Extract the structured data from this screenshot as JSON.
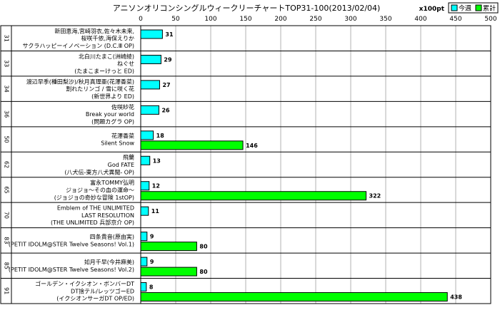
{
  "chart_data": {
    "type": "bar",
    "orientation": "horizontal",
    "title": "アニソンオリコンシングルウィークリーチャートTOP31-100(2013/02/04)",
    "unit": "x100pt",
    "xlim": [
      0,
      500
    ],
    "xticks": [
      0,
      50,
      100,
      150,
      200,
      250,
      300,
      350,
      400,
      450,
      500
    ],
    "grid": true,
    "legend_position": "top-right",
    "series": [
      {
        "name": "今週",
        "color": "#00ffff"
      },
      {
        "name": "累計",
        "color": "#00ff00"
      }
    ],
    "categories": [
      {
        "rank": "31",
        "lines": [
          "新田恵海,宮崎羽衣,佐々木未来,",
          "桜咲千依,海保えりか",
          "サクラハッピーイノベーション (D.C.Ⅲ OP)"
        ],
        "week": 31,
        "total": null
      },
      {
        "rank": "33",
        "lines": [
          "北白川たまこ(洲崎綾)",
          "ねぐせ",
          "(たまこまーけっと ED)"
        ],
        "week": 29,
        "total": null
      },
      {
        "rank": "34",
        "lines": [
          "渡辺早季(種田梨沙)/秋月真理亜(花澤香菜)",
          "割れたリンゴ / 雪に咲く花",
          "(新世界より ED)"
        ],
        "week": 27,
        "total": null
      },
      {
        "rank": "36",
        "lines": [
          "佐咲紗花",
          "Break your world",
          "(問題カグラ OP)"
        ],
        "week": 26,
        "total": null
      },
      {
        "rank": "50",
        "lines": [
          "花澤香菜",
          "Silent Snow"
        ],
        "week": 18,
        "total": 146
      },
      {
        "rank": "62",
        "lines": [
          "飛蘭",
          "God FATE",
          "(八犬伝-東方八犬異聞- OP)"
        ],
        "week": 13,
        "total": null
      },
      {
        "rank": "65",
        "lines": [
          "富永TOMMY弘明",
          "ジョジョ～その血の運命～",
          "(ジョジョの奇妙な冒険 1stOP)"
        ],
        "week": 12,
        "total": 322
      },
      {
        "rank": "70",
        "lines": [
          "Emblem of THE UNLIMITED",
          "LAST RESOLUTION",
          "(THE UNLIMITED 兵部京介 OP)"
        ],
        "week": 11,
        "total": null
      },
      {
        "rank": "83",
        "lines": [
          "四条貴音(原由実)",
          "(PETIT IDOLM@STER Twelve Seasons! Vol.1)"
        ],
        "week": 9,
        "total": 80
      },
      {
        "rank": "85",
        "lines": [
          "如月千早(今井麻美)",
          "(PETIT IDOLM@STER Twelve Seasons! Vol.2)"
        ],
        "week": 9,
        "total": 80
      },
      {
        "rank": "91",
        "lines": [
          "ゴールデン・イクシオン・ボンバーDT",
          "DT捨テル/レッツゴーED",
          "(イクシオンサーガDT OP/ED)"
        ],
        "week": 8,
        "total": 438
      }
    ]
  }
}
